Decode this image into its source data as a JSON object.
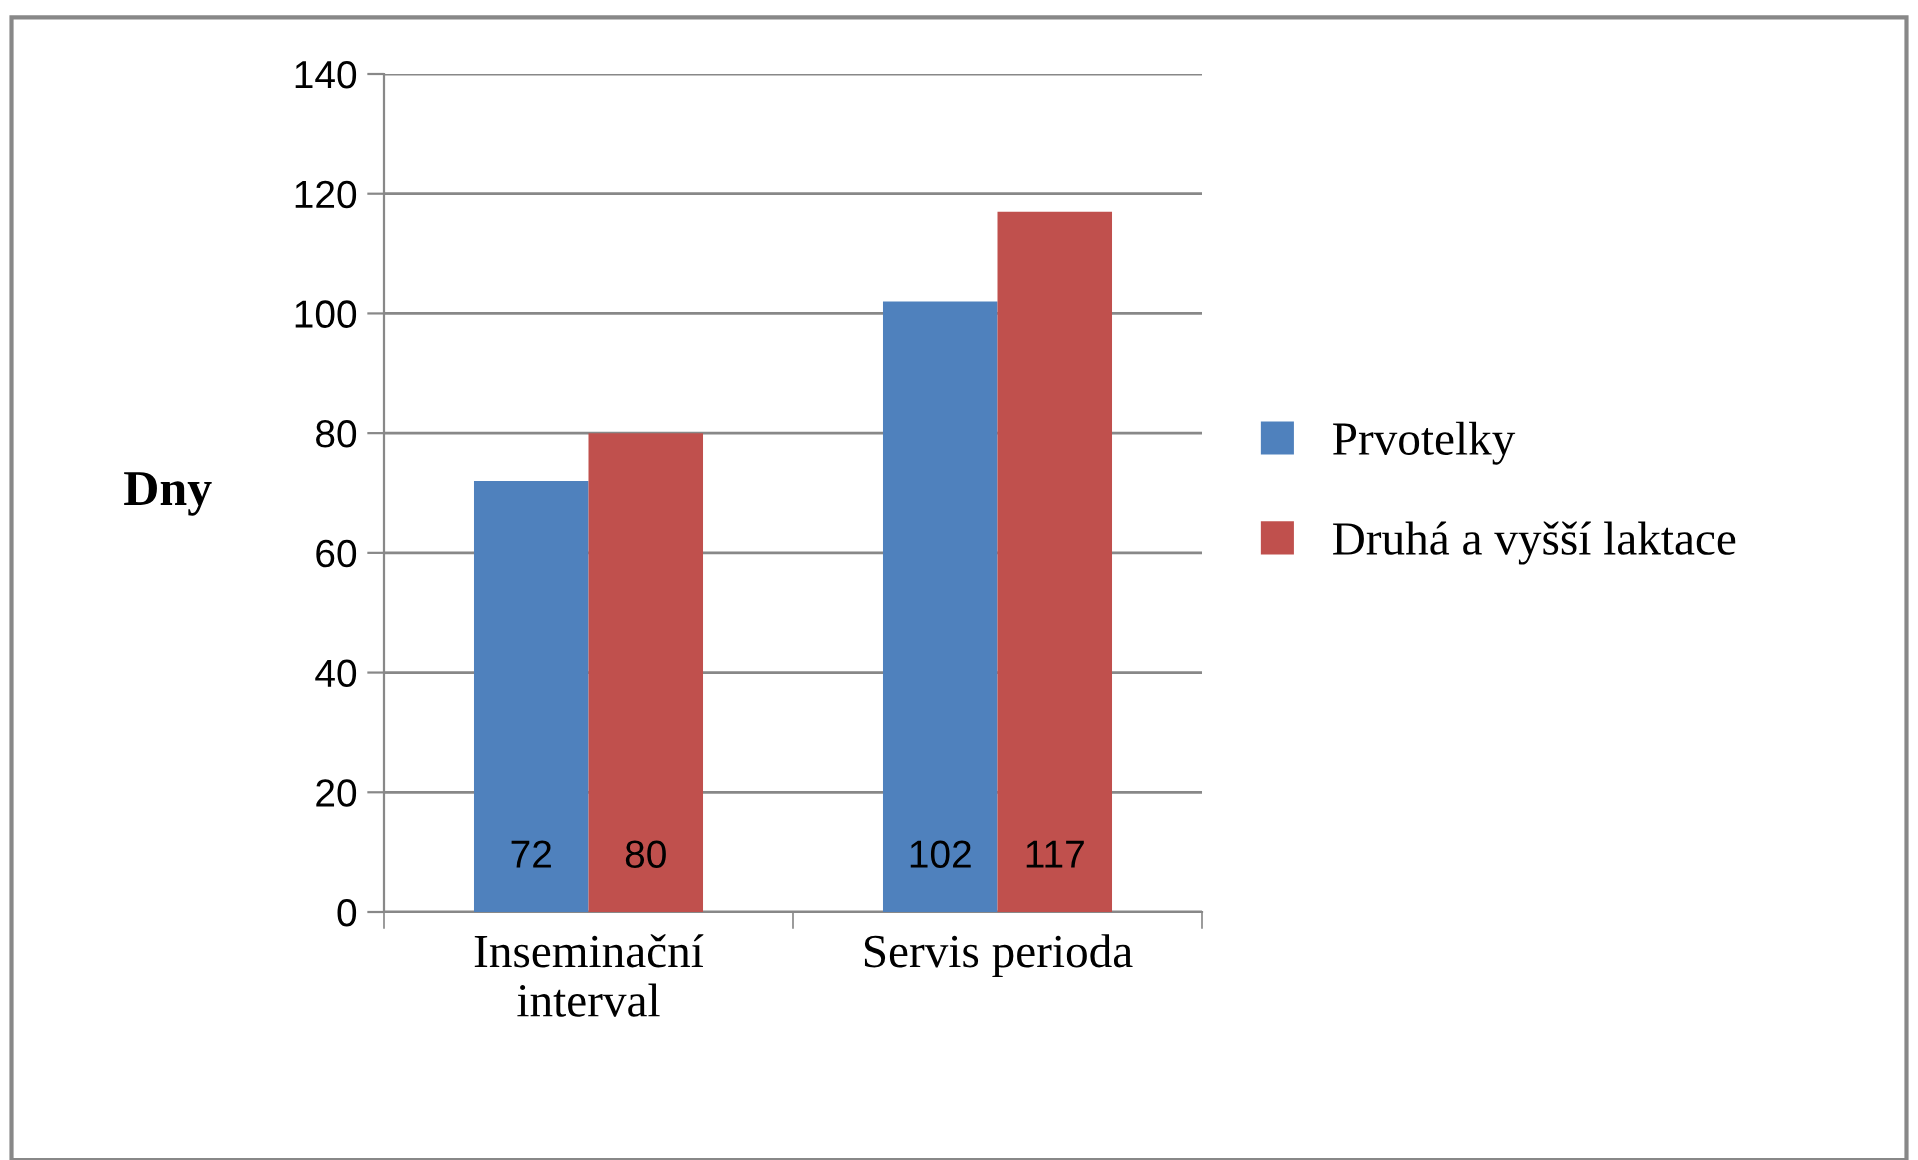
{
  "chart_data": {
    "type": "bar",
    "ylabel": "Dny",
    "categories": [
      "Inseminační\ninterval",
      "Servis perioda"
    ],
    "series": [
      {
        "name": "Prvotelky",
        "color": "#4f81bd",
        "values": [
          72,
          102
        ]
      },
      {
        "name": "Druhá a vyšší laktace",
        "color": "#c0504d",
        "values": [
          80,
          117
        ]
      }
    ],
    "ylim": [
      0,
      140
    ],
    "yticks": [
      0,
      20,
      40,
      60,
      80,
      100,
      120,
      140
    ],
    "grid": "y",
    "legend": "right",
    "data_labels": true
  }
}
